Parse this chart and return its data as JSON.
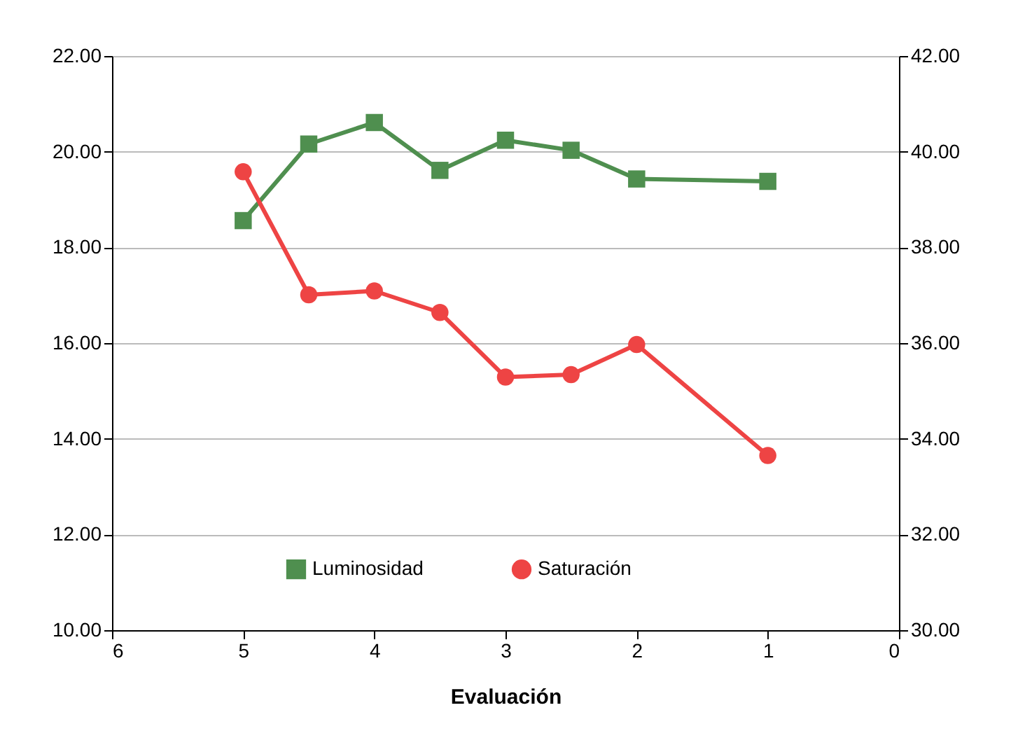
{
  "chart_data": {
    "type": "line",
    "xlabel": "Evaluación",
    "x": [
      5,
      4.5,
      4,
      3.5,
      3,
      2.5,
      2,
      1
    ],
    "series": [
      {
        "name": "Luminosidad",
        "color": "#4f8f4f",
        "marker": "square",
        "values": [
          18.56,
          20.16,
          20.61,
          19.61,
          20.24,
          20.03,
          19.43,
          19.38
        ]
      },
      {
        "name": "Saturación",
        "color": "#ee4444",
        "marker": "circle",
        "axis": "y2",
        "values": [
          39.58,
          37.01,
          37.09,
          36.64,
          35.29,
          35.34,
          35.97,
          33.65
        ]
      }
    ],
    "xlim": [
      6,
      0
    ],
    "xticks": [
      6,
      5,
      4,
      3,
      2,
      1,
      0
    ],
    "ylim": [
      10,
      22
    ],
    "yticks": [
      {
        "value": 10,
        "label": "10.00"
      },
      {
        "value": 12,
        "label": "12.00"
      },
      {
        "value": 14,
        "label": "14.00"
      },
      {
        "value": 16,
        "label": "16.00"
      },
      {
        "value": 18,
        "label": "18.00"
      },
      {
        "value": 20,
        "label": "20.00"
      },
      {
        "value": 22,
        "label": "22.00"
      }
    ],
    "y2lim": [
      30,
      42
    ],
    "y2ticks": [
      {
        "value": 30,
        "label": "30.00"
      },
      {
        "value": 32,
        "label": "32.00"
      },
      {
        "value": 34,
        "label": "34.00"
      },
      {
        "value": 36,
        "label": "36.00"
      },
      {
        "value": 38,
        "label": "38.00"
      },
      {
        "value": 40,
        "label": "40.00"
      },
      {
        "value": 42,
        "label": "42.00"
      }
    ],
    "grid": "y",
    "legend": "bottom"
  }
}
